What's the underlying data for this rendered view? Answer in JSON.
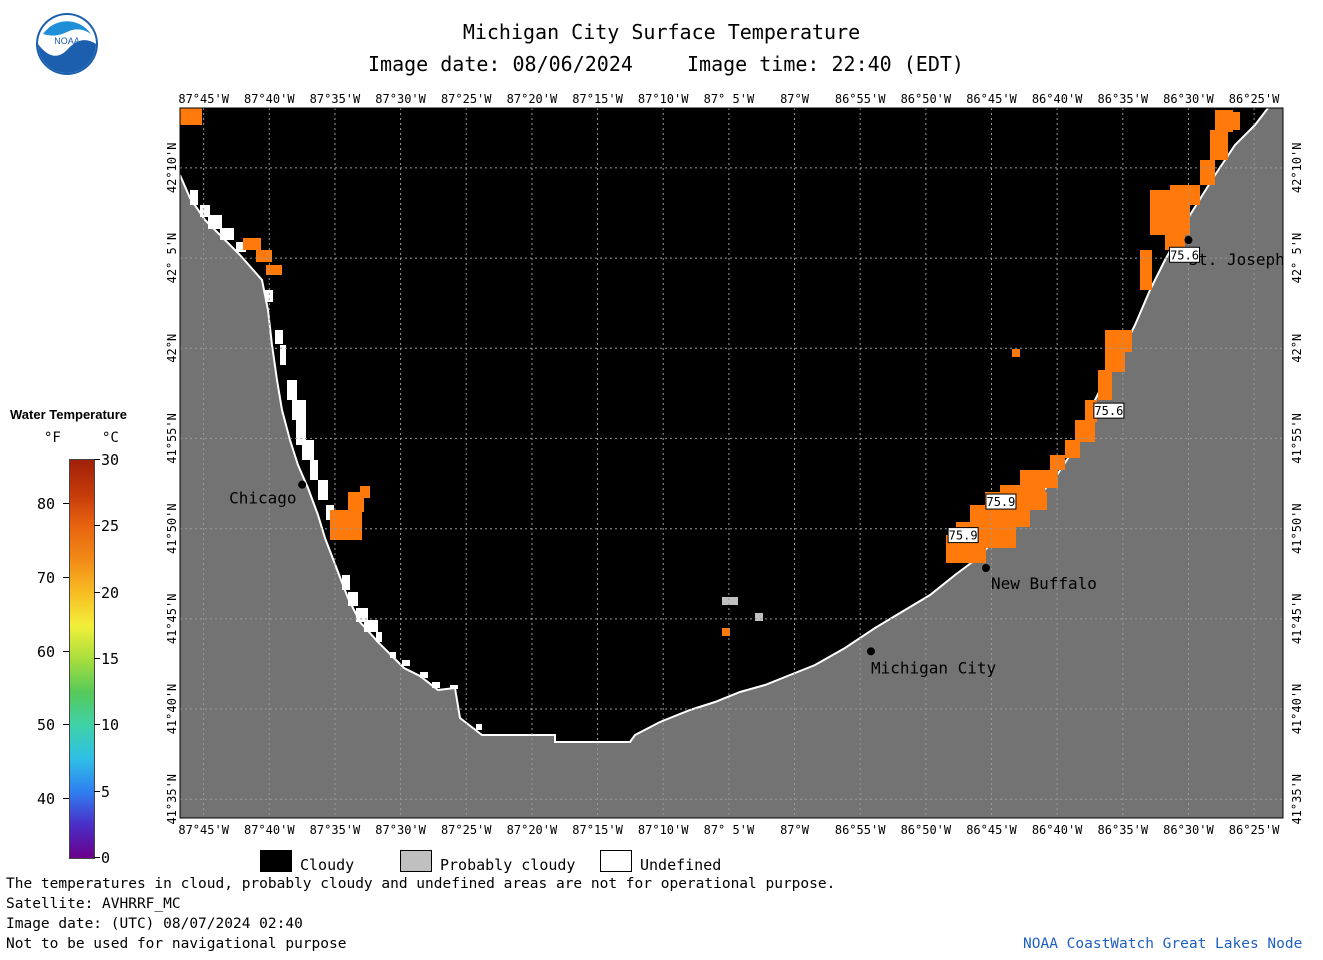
{
  "header": {
    "title": "Michigan City Surface Temperature",
    "image_date_label": "Image date: 08/06/2024",
    "image_time_label": "Image time: 22:40 (EDT)"
  },
  "lon_ticks": [
    "87°45'W",
    "87°40'W",
    "87°35'W",
    "87°30'W",
    "87°25'W",
    "87°20'W",
    "87°15'W",
    "87°10'W",
    "87° 5'W",
    "87°W",
    "86°55'W",
    "86°50'W",
    "86°45'W",
    "86°40'W",
    "86°35'W",
    "86°30'W",
    "86°25'W"
  ],
  "lat_ticks": [
    "42°10'N",
    "42° 5'N",
    "42°N",
    "41°55'N",
    "41°50'N",
    "41°45'N",
    "41°40'N",
    "41°35'N"
  ],
  "cities": [
    {
      "name": "Chicago",
      "lon": -87.625,
      "lat": 41.874
    },
    {
      "name": "St. Joseph",
      "lon": -86.5,
      "lat": 42.1
    },
    {
      "name": "New Buffalo",
      "lon": -86.757,
      "lat": 41.797
    },
    {
      "name": "Michigan City",
      "lon": -86.903,
      "lat": 41.72
    }
  ],
  "temperature_labels": [
    {
      "value": "75.6",
      "lon": -86.505,
      "lat": 42.085
    },
    {
      "value": "75.6",
      "lon": -86.601,
      "lat": 41.941
    },
    {
      "value": "75.9",
      "lon": -86.738,
      "lat": 41.857
    },
    {
      "value": "75.9",
      "lon": -86.786,
      "lat": 41.826
    }
  ],
  "color_scale": {
    "title": "Water Temperature",
    "unit_f": "°F",
    "unit_c": "°C",
    "f_ticks": [
      "40",
      "50",
      "60",
      "70",
      "80"
    ],
    "c_ticks": [
      "0",
      "5",
      "10",
      "15",
      "20",
      "25",
      "30"
    ],
    "colors": [
      "#6a008a",
      "#4a2ec8",
      "#2f7ff0",
      "#2fbfe6",
      "#3fd2a8",
      "#56c95a",
      "#a8de3c",
      "#f2ef3a",
      "#f7bd22",
      "#f28a18",
      "#e8640f",
      "#c43a0a",
      "#a02008"
    ]
  },
  "legend": {
    "cloudy": "Cloudy",
    "probably_cloudy": "Probably cloudy",
    "undefined": "Undefined",
    "cloudy_color": "#000000",
    "probably_cloudy_color": "#c0c0c0",
    "undefined_color": "#ffffff",
    "land_color": "#737373",
    "sst_color": "#ff7a0a"
  },
  "footer": {
    "line1": "The temperatures in cloud, probably cloudy and undefined areas are not for operational purpose.",
    "line2": "Satellite: AVHRRF_MC",
    "line3": "Image date: (UTC) 08/07/2024  02:40",
    "line4": "Not to be used for navigational purpose",
    "credit": "NOAA CoastWatch Great Lakes Node"
  },
  "logo": {
    "text": "NOAA"
  }
}
